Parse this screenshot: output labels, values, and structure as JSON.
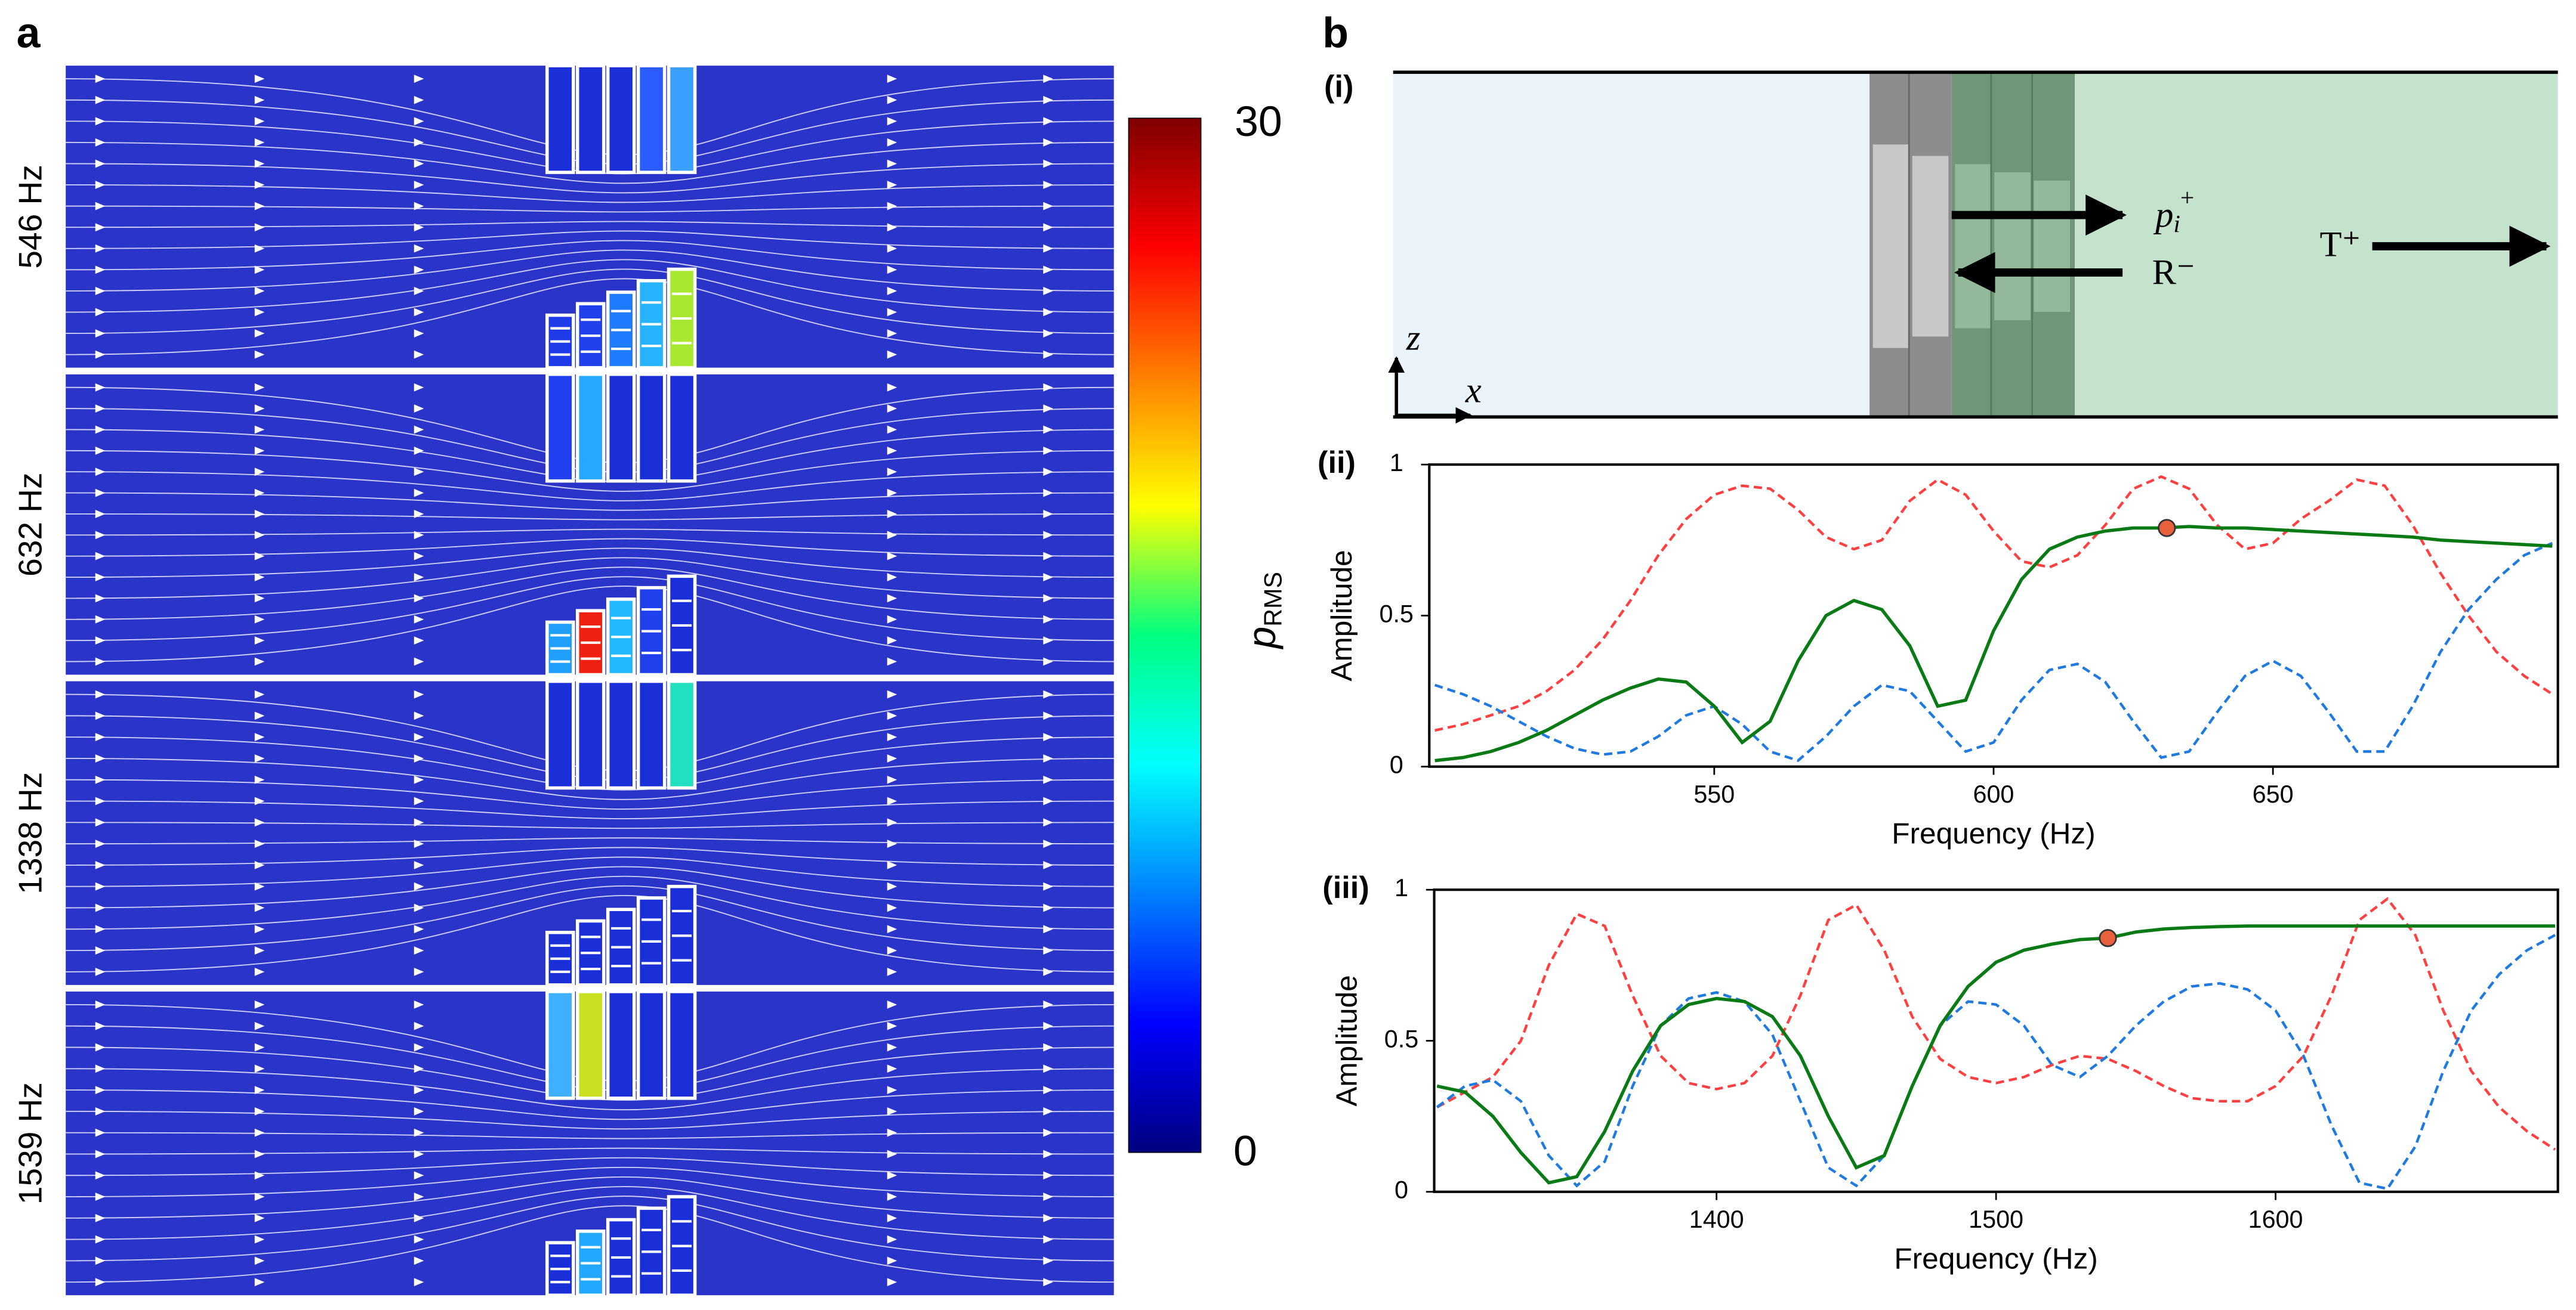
{
  "labels": {
    "a": "a",
    "b": "b"
  },
  "field_maps": {
    "frequencies": [
      "546 Hz",
      "632 Hz",
      "1338 Hz",
      "1539 Hz"
    ],
    "colorbar": {
      "symbol": "p",
      "subscript": "RMS",
      "ticks": [
        0,
        30
      ]
    }
  },
  "schematic": {
    "label": "(i)",
    "incident": "p",
    "incident_sub": "i",
    "incident_sup": "+",
    "reflected": "R⁻",
    "transmitted": "T⁺",
    "z_axis": "z",
    "x_axis": "x"
  },
  "chart_data": [
    {
      "type": "line",
      "label": "(ii)",
      "xlabel": "Frequency (Hz)",
      "ylabel": "Amplitude",
      "xlim": [
        499,
        701
      ],
      "ylim": [
        0,
        1
      ],
      "xticks": [
        550,
        600,
        650
      ],
      "yticks": [
        0,
        0.5,
        1
      ],
      "x": [
        500,
        505,
        510,
        515,
        520,
        525,
        530,
        535,
        540,
        545,
        550,
        555,
        560,
        565,
        570,
        575,
        580,
        585,
        590,
        595,
        600,
        605,
        610,
        615,
        620,
        625,
        630,
        635,
        640,
        645,
        650,
        655,
        660,
        665,
        670,
        675,
        680,
        685,
        690,
        695,
        700
      ],
      "series": [
        {
          "color": "#ff4040",
          "style": "dashed",
          "values": [
            0.12,
            0.14,
            0.17,
            0.2,
            0.25,
            0.32,
            0.42,
            0.55,
            0.7,
            0.82,
            0.9,
            0.93,
            0.92,
            0.85,
            0.76,
            0.72,
            0.75,
            0.88,
            0.95,
            0.9,
            0.78,
            0.68,
            0.66,
            0.7,
            0.8,
            0.92,
            0.96,
            0.92,
            0.8,
            0.72,
            0.74,
            0.82,
            0.88,
            0.95,
            0.93,
            0.8,
            0.64,
            0.5,
            0.38,
            0.3,
            0.24
          ]
        },
        {
          "color": "#1f7ae0",
          "style": "dashed",
          "values": [
            0.27,
            0.24,
            0.2,
            0.15,
            0.1,
            0.06,
            0.04,
            0.05,
            0.1,
            0.17,
            0.2,
            0.14,
            0.05,
            0.02,
            0.1,
            0.2,
            0.27,
            0.25,
            0.15,
            0.05,
            0.08,
            0.22,
            0.32,
            0.34,
            0.28,
            0.15,
            0.03,
            0.05,
            0.18,
            0.3,
            0.35,
            0.3,
            0.18,
            0.05,
            0.05,
            0.2,
            0.38,
            0.52,
            0.62,
            0.7,
            0.74
          ]
        },
        {
          "color": "#0a7a14",
          "style": "solid",
          "values": [
            0.02,
            0.03,
            0.05,
            0.08,
            0.12,
            0.17,
            0.22,
            0.26,
            0.29,
            0.28,
            0.2,
            0.08,
            0.15,
            0.35,
            0.5,
            0.55,
            0.52,
            0.4,
            0.2,
            0.22,
            0.45,
            0.62,
            0.72,
            0.76,
            0.78,
            0.79,
            0.79,
            0.795,
            0.79,
            0.79,
            0.785,
            0.78,
            0.775,
            0.77,
            0.765,
            0.76,
            0.75,
            0.745,
            0.74,
            0.735,
            0.73
          ]
        }
      ],
      "marker": {
        "x": 631,
        "y": 0.79,
        "color": "#e8603c"
      }
    },
    {
      "type": "line",
      "label": "(iii)",
      "xlabel": "Frequency (Hz)",
      "ylabel": "Amplitude",
      "xlim": [
        1299,
        1701
      ],
      "ylim": [
        0,
        1
      ],
      "xticks": [
        1400,
        1500,
        1600
      ],
      "yticks": [
        0,
        0.5,
        1
      ],
      "x": [
        1300,
        1310,
        1320,
        1330,
        1340,
        1350,
        1360,
        1370,
        1380,
        1390,
        1400,
        1410,
        1420,
        1430,
        1440,
        1450,
        1460,
        1470,
        1480,
        1490,
        1500,
        1510,
        1520,
        1530,
        1540,
        1550,
        1560,
        1570,
        1580,
        1590,
        1600,
        1610,
        1620,
        1630,
        1640,
        1650,
        1660,
        1670,
        1680,
        1690,
        1700
      ],
      "series": [
        {
          "color": "#ff4040",
          "style": "dashed",
          "values": [
            0.28,
            0.33,
            0.38,
            0.5,
            0.75,
            0.92,
            0.88,
            0.65,
            0.45,
            0.36,
            0.34,
            0.36,
            0.45,
            0.65,
            0.9,
            0.95,
            0.8,
            0.58,
            0.44,
            0.38,
            0.36,
            0.38,
            0.42,
            0.45,
            0.44,
            0.4,
            0.35,
            0.31,
            0.3,
            0.3,
            0.35,
            0.45,
            0.65,
            0.9,
            0.97,
            0.85,
            0.6,
            0.4,
            0.28,
            0.2,
            0.14
          ]
        },
        {
          "color": "#1f7ae0",
          "style": "dashed",
          "values": [
            0.28,
            0.35,
            0.37,
            0.3,
            0.12,
            0.02,
            0.1,
            0.35,
            0.55,
            0.64,
            0.66,
            0.63,
            0.52,
            0.3,
            0.08,
            0.02,
            0.12,
            0.35,
            0.55,
            0.63,
            0.62,
            0.55,
            0.42,
            0.38,
            0.45,
            0.55,
            0.63,
            0.68,
            0.69,
            0.67,
            0.6,
            0.45,
            0.22,
            0.03,
            0.01,
            0.15,
            0.4,
            0.6,
            0.72,
            0.8,
            0.85
          ]
        },
        {
          "color": "#0a7a14",
          "style": "solid",
          "values": [
            0.35,
            0.33,
            0.25,
            0.13,
            0.03,
            0.05,
            0.2,
            0.4,
            0.55,
            0.62,
            0.64,
            0.63,
            0.58,
            0.45,
            0.25,
            0.08,
            0.12,
            0.35,
            0.55,
            0.68,
            0.76,
            0.8,
            0.82,
            0.835,
            0.84,
            0.86,
            0.87,
            0.875,
            0.878,
            0.88,
            0.88,
            0.88,
            0.88,
            0.88,
            0.88,
            0.88,
            0.88,
            0.88,
            0.88,
            0.88,
            0.88
          ]
        }
      ],
      "marker": {
        "x": 1540,
        "y": 0.84,
        "color": "#e8603c"
      }
    }
  ]
}
